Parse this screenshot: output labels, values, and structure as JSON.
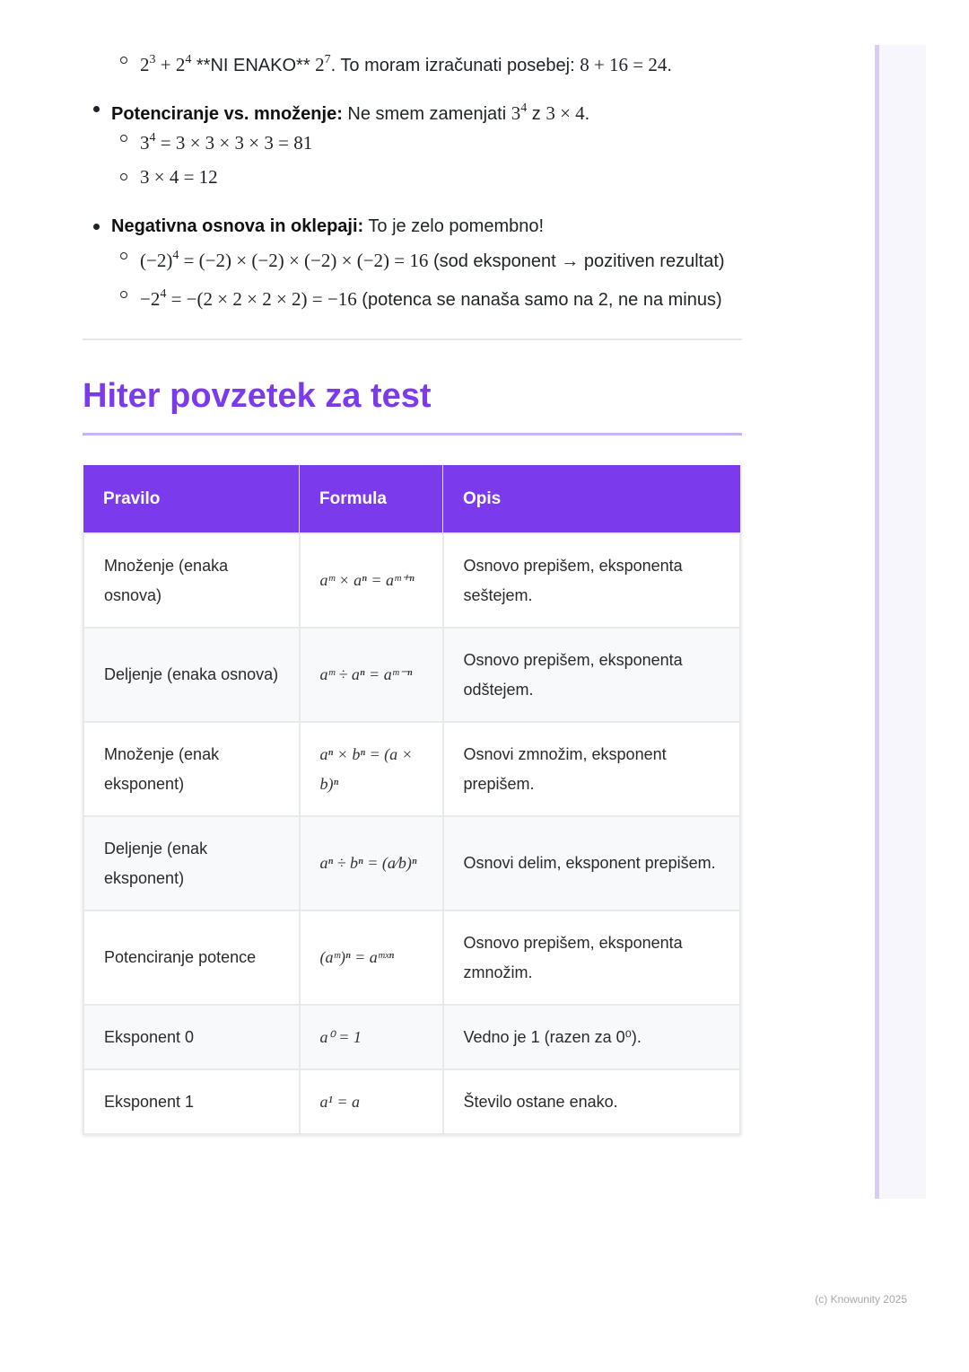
{
  "bullets": [
    {
      "level": 2,
      "segments": [
        {
          "k": "m",
          "t": "2"
        },
        {
          "k": "sup",
          "t": "3"
        },
        {
          "k": "m",
          "t": " + 2"
        },
        {
          "k": "sup",
          "t": "4"
        },
        {
          "k": "t",
          "t": " **NI ENAKO** "
        },
        {
          "k": "m",
          "t": "2"
        },
        {
          "k": "sup",
          "t": "7"
        },
        {
          "k": "t",
          "t": ". To moram izračunati posebej: "
        },
        {
          "k": "m",
          "t": "8 + 16 = 24"
        },
        {
          "k": "t",
          "t": "."
        }
      ]
    },
    {
      "level": 1,
      "segments": [
        {
          "k": "b",
          "t": "Potenciranje vs. množenje:"
        },
        {
          "k": "t",
          "t": " Ne smem zamenjati "
        },
        {
          "k": "m",
          "t": "3"
        },
        {
          "k": "sup",
          "t": "4"
        },
        {
          "k": "t",
          "t": " z "
        },
        {
          "k": "m",
          "t": "3 × 4"
        },
        {
          "k": "t",
          "t": "."
        }
      ]
    },
    {
      "level": 2,
      "segments": [
        {
          "k": "m",
          "t": "3"
        },
        {
          "k": "sup",
          "t": "4"
        },
        {
          "k": "m",
          "t": " = 3 × 3 × 3 × 3 = 81"
        }
      ]
    },
    {
      "level": 2,
      "segments": [
        {
          "k": "m",
          "t": "3 × 4 = 12"
        }
      ]
    },
    {
      "level": 1,
      "segments": [
        {
          "k": "b",
          "t": "Negativna osnova in oklepaji:"
        },
        {
          "k": "t",
          "t": " To je zelo pomembno!"
        }
      ]
    },
    {
      "level": 2,
      "segments": [
        {
          "k": "m",
          "t": "(−2)"
        },
        {
          "k": "sup",
          "t": "4"
        },
        {
          "k": "m",
          "t": " = (−2) × (−2) × (−2) × (−2) = 16"
        },
        {
          "k": "t",
          "t": " (sod eksponent → pozitiven rezultat)"
        }
      ]
    },
    {
      "level": 2,
      "segments": [
        {
          "k": "m",
          "t": "−2"
        },
        {
          "k": "sup",
          "t": "4"
        },
        {
          "k": "m",
          "t": " = −(2 × 2 × 2 × 2) = −16"
        },
        {
          "k": "t",
          "t": " (potenca se nanaša samo na 2, ne na minus)"
        }
      ]
    }
  ],
  "heading": "Hiter povzetek za test",
  "table": {
    "headers": [
      "Pravilo",
      "Formula",
      "Opis"
    ],
    "rows": [
      {
        "rule": "Množenje (enaka osnova)",
        "formula": "aᵐ × aⁿ = aᵐ⁺ⁿ",
        "desc": "Osnovo prepišem, eksponenta seštejem."
      },
      {
        "rule": "Deljenje (enaka osnova)",
        "formula": "aᵐ ÷ aⁿ = aᵐ⁻ⁿ",
        "desc": "Osnovo prepišem, eksponenta odštejem."
      },
      {
        "rule": "Množenje (enak eksponent)",
        "formula": "aⁿ × bⁿ = (a × b)ⁿ",
        "desc": "Osnovi zmnožim, eksponent prepišem."
      },
      {
        "rule": "Deljenje (enak eksponent)",
        "formula": "aⁿ ÷ bⁿ = (a⁄b)ⁿ",
        "desc": "Osnovi delim, eksponent prepišem."
      },
      {
        "rule": "Potenciranje potence",
        "formula": "(aᵐ)ⁿ = aᵐˣⁿ",
        "desc": "Osnovo prepišem, eksponenta zmnožim."
      },
      {
        "rule": "Eksponent 0",
        "formula": "a⁰ = 1",
        "desc": "Vedno je 1 (razen za 0⁰)."
      },
      {
        "rule": "Eksponent 1",
        "formula": "a¹ = a",
        "desc": "Število ostane enako."
      }
    ]
  },
  "footer": "(c) Knowunity 2025",
  "colors": {
    "accent": "#7c3aed",
    "accent_light": "#c9b3f5",
    "row_alt": "#f8f9fb"
  }
}
